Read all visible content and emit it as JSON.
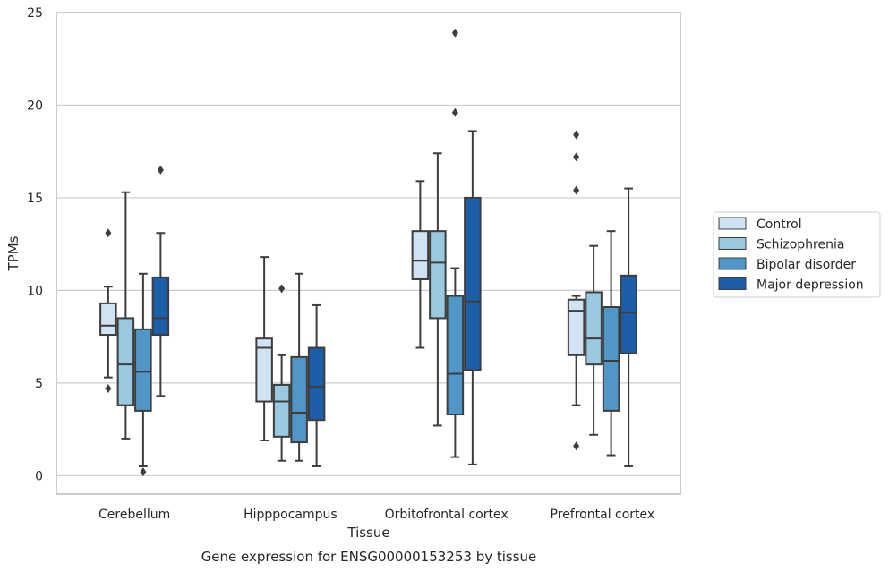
{
  "chart_data": {
    "type": "boxplot",
    "title": "",
    "xlabel": "Tissue",
    "ylabel": "TPMs",
    "caption": "Gene expression for ENSG00000153253 by tissue",
    "ylim": [
      -1,
      25
    ],
    "yticks": [
      0,
      5,
      10,
      15,
      20,
      25
    ],
    "grid": "horizontal",
    "legend_position": "right",
    "categories": [
      "Cerebellum",
      "Hipppocampus",
      "Orbitofrontal cortex",
      "Prefrontal cortex"
    ],
    "series": [
      {
        "name": "Control",
        "color": "#d1e2f2",
        "boxes": [
          {
            "whislo": 5.3,
            "q1": 7.6,
            "med": 8.1,
            "q3": 9.3,
            "whishi": 10.2,
            "fliers": [
              13.1,
              4.7
            ]
          },
          {
            "whislo": 1.9,
            "q1": 4.0,
            "med": 6.9,
            "q3": 7.4,
            "whishi": 11.8,
            "fliers": []
          },
          {
            "whislo": 6.9,
            "q1": 10.6,
            "med": 11.6,
            "q3": 13.2,
            "whishi": 15.9,
            "fliers": []
          },
          {
            "whislo": 3.8,
            "q1": 6.5,
            "med": 8.9,
            "q3": 9.5,
            "whishi": 9.7,
            "fliers": [
              18.4,
              17.2,
              15.4,
              1.6
            ]
          }
        ]
      },
      {
        "name": "Schizophrenia",
        "color": "#9ac8e0",
        "boxes": [
          {
            "whislo": 2.0,
            "q1": 3.8,
            "med": 6.0,
            "q3": 8.5,
            "whishi": 15.3,
            "fliers": []
          },
          {
            "whislo": 0.8,
            "q1": 2.1,
            "med": 4.0,
            "q3": 4.9,
            "whishi": 6.5,
            "fliers": [
              10.1
            ]
          },
          {
            "whislo": 2.7,
            "q1": 8.5,
            "med": 11.5,
            "q3": 13.2,
            "whishi": 17.4,
            "fliers": []
          },
          {
            "whislo": 2.2,
            "q1": 6.0,
            "med": 7.4,
            "q3": 9.9,
            "whishi": 12.4,
            "fliers": []
          }
        ]
      },
      {
        "name": "Bipolar disorder",
        "color": "#5096c7",
        "boxes": [
          {
            "whislo": 0.5,
            "q1": 3.5,
            "med": 5.6,
            "q3": 7.9,
            "whishi": 10.9,
            "fliers": [
              0.2
            ]
          },
          {
            "whislo": 0.8,
            "q1": 1.8,
            "med": 3.4,
            "q3": 6.4,
            "whishi": 10.9,
            "fliers": []
          },
          {
            "whislo": 1.0,
            "q1": 3.3,
            "med": 5.5,
            "q3": 9.7,
            "whishi": 11.2,
            "fliers": [
              23.9,
              19.6
            ]
          },
          {
            "whislo": 1.1,
            "q1": 3.5,
            "med": 6.2,
            "q3": 9.1,
            "whishi": 13.2,
            "fliers": []
          }
        ]
      },
      {
        "name": "Major depression",
        "color": "#1c5ea8",
        "boxes": [
          {
            "whislo": 4.3,
            "q1": 7.6,
            "med": 8.5,
            "q3": 10.7,
            "whishi": 13.1,
            "fliers": [
              16.5
            ]
          },
          {
            "whislo": 0.5,
            "q1": 3.0,
            "med": 4.8,
            "q3": 6.9,
            "whishi": 9.2,
            "fliers": []
          },
          {
            "whislo": 0.6,
            "q1": 5.7,
            "med": 9.4,
            "q3": 15.0,
            "whishi": 18.6,
            "fliers": []
          },
          {
            "whislo": 0.5,
            "q1": 6.6,
            "med": 8.8,
            "q3": 10.8,
            "whishi": 15.5,
            "fliers": []
          }
        ]
      }
    ]
  }
}
